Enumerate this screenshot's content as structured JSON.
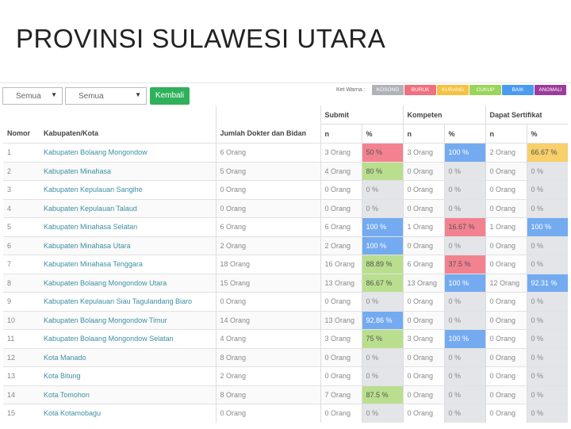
{
  "slide_title": "PROVINSI SULAWESI UTARA",
  "toolbar": {
    "select1_value": "Semua",
    "select2_value": "Semua",
    "back_label": "Kembali"
  },
  "legend": {
    "label": "Ket Warna :",
    "items": [
      {
        "label": "KOSONG",
        "color": "#b0b3b8"
      },
      {
        "label": "BURUK",
        "color": "#f0707f"
      },
      {
        "label": "KURANG",
        "color": "#f5c242"
      },
      {
        "label": "CUKUP",
        "color": "#9bd45c"
      },
      {
        "label": "BAIK",
        "color": "#4a9cf0"
      },
      {
        "label": "ANOMALI",
        "color": "#9b3d9c"
      }
    ]
  },
  "table": {
    "headers": {
      "nomor": "Nomor",
      "kab": "Kabupaten/Kota",
      "jumlah": "Jumlah Dokter dan Bidan",
      "submit": "Submit",
      "kompeten": "Kompeten",
      "dapat": "Dapat Sertifikat",
      "n": "n",
      "pct": "%"
    },
    "rows": [
      {
        "no": "1",
        "name": "Kabupaten Bolaang Mongondow",
        "jumlah": "6 Orang",
        "sn": "3 Orang",
        "sp": "50 %",
        "sc": "red",
        "kn": "3 Orang",
        "kp": "100 %",
        "kc": "blue",
        "dn": "2 Orang",
        "dp": "66.67 %",
        "dc": "yellow"
      },
      {
        "no": "2",
        "name": "Kabupaten Minahasa",
        "jumlah": "5 Orang",
        "sn": "4 Orang",
        "sp": "80 %",
        "sc": "green",
        "kn": "0 Orang",
        "kp": "0 %",
        "kc": "gray",
        "dn": "0 Orang",
        "dp": "0 %",
        "dc": "gray"
      },
      {
        "no": "3",
        "name": "Kabupaten Kepulauan Sangihe",
        "jumlah": "0 Orang",
        "sn": "0 Orang",
        "sp": "0 %",
        "sc": "gray",
        "kn": "0 Orang",
        "kp": "0 %",
        "kc": "gray",
        "dn": "0 Orang",
        "dp": "0 %",
        "dc": "gray"
      },
      {
        "no": "4",
        "name": "Kabupaten Kepulauan Talaud",
        "jumlah": "0 Orang",
        "sn": "0 Orang",
        "sp": "0 %",
        "sc": "gray",
        "kn": "0 Orang",
        "kp": "0 %",
        "kc": "gray",
        "dn": "0 Orang",
        "dp": "0 %",
        "dc": "gray"
      },
      {
        "no": "5",
        "name": "Kabupaten Minahasa Selatan",
        "jumlah": "6 Orang",
        "sn": "6 Orang",
        "sp": "100 %",
        "sc": "blue",
        "kn": "1 Orang",
        "kp": "16.67 %",
        "kc": "red",
        "dn": "1 Orang",
        "dp": "100 %",
        "dc": "blue"
      },
      {
        "no": "6",
        "name": "Kabupaten Minahasa Utara",
        "jumlah": "2 Orang",
        "sn": "2 Orang",
        "sp": "100 %",
        "sc": "blue",
        "kn": "0 Orang",
        "kp": "0 %",
        "kc": "gray",
        "dn": "0 Orang",
        "dp": "0 %",
        "dc": "gray"
      },
      {
        "no": "7",
        "name": "Kabupaten Minahasa Tenggara",
        "jumlah": "18 Orang",
        "sn": "16 Orang",
        "sp": "88.89 %",
        "sc": "green",
        "kn": "6 Orang",
        "kp": "37.5 %",
        "kc": "red",
        "dn": "0 Orang",
        "dp": "0 %",
        "dc": "gray"
      },
      {
        "no": "8",
        "name": "Kabupaten Bolaang Mongondow Utara",
        "jumlah": "15 Orang",
        "sn": "13 Orang",
        "sp": "86.67 %",
        "sc": "green",
        "kn": "13 Orang",
        "kp": "100 %",
        "kc": "blue",
        "dn": "12 Orang",
        "dp": "92.31 %",
        "dc": "blue"
      },
      {
        "no": "9",
        "name": "Kabupaten Kepulauan Siau Tagulandang Biaro",
        "jumlah": "0 Orang",
        "sn": "0 Orang",
        "sp": "0 %",
        "sc": "gray",
        "kn": "0 Orang",
        "kp": "0 %",
        "kc": "gray",
        "dn": "0 Orang",
        "dp": "0 %",
        "dc": "gray"
      },
      {
        "no": "10",
        "name": "Kabupaten Bolaang Mongondow Timur",
        "jumlah": "14 Orang",
        "sn": "13 Orang",
        "sp": "92.86 %",
        "sc": "blue",
        "kn": "0 Orang",
        "kp": "0 %",
        "kc": "gray",
        "dn": "0 Orang",
        "dp": "0 %",
        "dc": "gray"
      },
      {
        "no": "11",
        "name": "Kabupaten Bolaang Mongondow Selatan",
        "jumlah": "4 Orang",
        "sn": "3 Orang",
        "sp": "75 %",
        "sc": "green",
        "kn": "3 Orang",
        "kp": "100 %",
        "kc": "blue",
        "dn": "0 Orang",
        "dp": "0 %",
        "dc": "gray"
      },
      {
        "no": "12",
        "name": "Kota Manado",
        "jumlah": "8 Orang",
        "sn": "0 Orang",
        "sp": "0 %",
        "sc": "gray",
        "kn": "0 Orang",
        "kp": "0 %",
        "kc": "gray",
        "dn": "0 Orang",
        "dp": "0 %",
        "dc": "gray"
      },
      {
        "no": "13",
        "name": "Kota Bitung",
        "jumlah": "2 Orang",
        "sn": "0 Orang",
        "sp": "0 %",
        "sc": "gray",
        "kn": "0 Orang",
        "kp": "0 %",
        "kc": "gray",
        "dn": "0 Orang",
        "dp": "0 %",
        "dc": "gray"
      },
      {
        "no": "14",
        "name": "Kota Tomohon",
        "jumlah": "8 Orang",
        "sn": "7 Orang",
        "sp": "87.5 %",
        "sc": "green",
        "kn": "0 Orang",
        "kp": "0 %",
        "kc": "gray",
        "dn": "0 Orang",
        "dp": "0 %",
        "dc": "gray"
      },
      {
        "no": "15",
        "name": "Kota Kotamobagu",
        "jumlah": "0 Orang",
        "sn": "0 Orang",
        "sp": "0 %",
        "sc": "gray",
        "kn": "0 Orang",
        "kp": "0 %",
        "kc": "gray",
        "dn": "0 Orang",
        "dp": "0 %",
        "dc": "gray"
      }
    ]
  }
}
